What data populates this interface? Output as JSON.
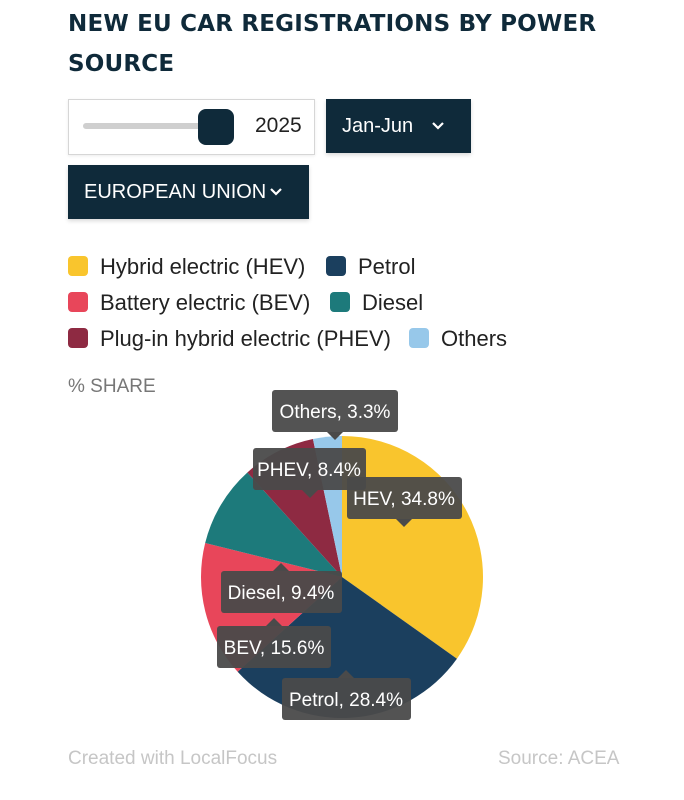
{
  "title": "NEW EU CAR REGISTRATIONS BY POWER SOURCE",
  "controls": {
    "year": "2025",
    "year_fraction": 0.92,
    "period": "Jan-Jun",
    "region": "EUROPEAN UNION",
    "chevron": "chevron-down-icon"
  },
  "share_label": "% SHARE",
  "footer": {
    "credit": "Created with LocalFocus",
    "source": "Source:  ACEA"
  },
  "chart_data": {
    "type": "pie",
    "legend_position": "top",
    "slices": [
      {
        "name": "Hybrid electric (HEV)",
        "short": "HEV",
        "value": 34.8,
        "color": "#f9c52d"
      },
      {
        "name": "Petrol",
        "short": "Petrol",
        "value": 28.4,
        "color": "#1b3f5e"
      },
      {
        "name": "Battery electric (BEV)",
        "short": "BEV",
        "value": 15.6,
        "color": "#e8465a"
      },
      {
        "name": "Diesel",
        "short": "Diesel",
        "value": 9.4,
        "color": "#1d7a7b"
      },
      {
        "name": "Plug-in hybrid electric (PHEV)",
        "short": "PHEV",
        "value": 8.4,
        "color": "#8e2a42"
      },
      {
        "name": "Others",
        "short": "Others",
        "value": 3.3,
        "color": "#97c8ea"
      }
    ],
    "tooltips": [
      "Others, 3.3%",
      "PHEV, 8.4%",
      "HEV, 34.8%",
      "Diesel, 9.4%",
      "BEV, 15.6%",
      "Petrol, 28.4%"
    ]
  }
}
